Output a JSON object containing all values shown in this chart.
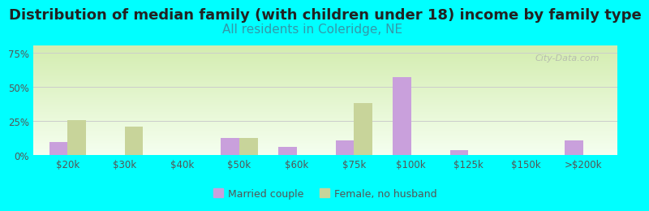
{
  "title": "Distribution of median family (with children under 18) income by family type",
  "subtitle": "All residents in Coleridge, NE",
  "categories": [
    "$20k",
    "$30k",
    "$40k",
    "$50k",
    "$60k",
    "$75k",
    "$100k",
    "$125k",
    "$150k",
    ">$200k"
  ],
  "married_couple": [
    10,
    0,
    0,
    13,
    6,
    11,
    57,
    4,
    0,
    11
  ],
  "female_no_husband": [
    26,
    21,
    0,
    13,
    0,
    38,
    0,
    0,
    0,
    0
  ],
  "married_color": "#c9a0dc",
  "female_color": "#c8d49a",
  "background_color": "#00ffff",
  "title_fontsize": 13,
  "subtitle_fontsize": 11,
  "subtitle_color": "#3399aa",
  "yticks": [
    0,
    25,
    50,
    75
  ],
  "ylim": [
    0,
    80
  ],
  "bar_width": 0.32,
  "watermark": "City-Data.com"
}
